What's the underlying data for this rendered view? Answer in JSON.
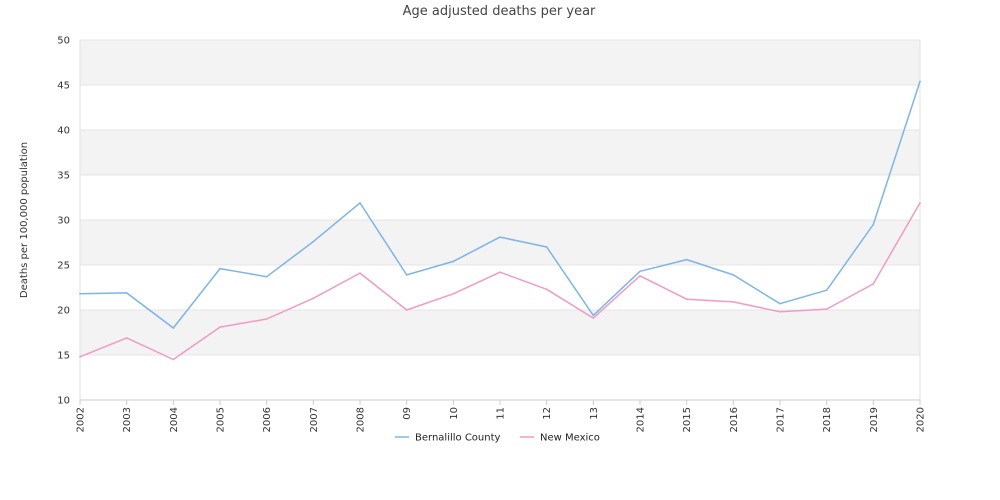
{
  "chart_data": {
    "type": "line",
    "title": "Age adjusted deaths per year",
    "xlabel": "",
    "ylabel": "Deaths per 100,000 population",
    "ylim": [
      10,
      50
    ],
    "yticks": [
      "10",
      "15",
      "20",
      "25",
      "30",
      "35",
      "40",
      "45",
      "50"
    ],
    "categories": [
      "2002",
      "2003",
      "2004",
      "2005",
      "2006",
      "2007",
      "2008",
      "09",
      "10",
      "11",
      "12",
      "13",
      "2014",
      "2015",
      "2016",
      "2017",
      "2018",
      "2019",
      "2020"
    ],
    "grid": "horizontal bands",
    "legend_position": "bottom-center",
    "series": [
      {
        "name": "Bernalillo County",
        "color": "#7cb5ec",
        "values": [
          21.8,
          21.9,
          18.0,
          24.6,
          23.7,
          27.6,
          31.9,
          23.9,
          25.4,
          28.1,
          27.0,
          19.4,
          24.3,
          25.6,
          23.9,
          20.7,
          22.2,
          29.5,
          45.4
        ]
      },
      {
        "name": "New Mexico",
        "color": "#f39ac2",
        "values": [
          14.8,
          16.9,
          14.5,
          18.1,
          19.0,
          21.3,
          24.1,
          20.0,
          21.8,
          24.2,
          22.3,
          19.1,
          23.8,
          21.2,
          20.9,
          19.8,
          20.1,
          22.9,
          31.9
        ]
      }
    ]
  }
}
